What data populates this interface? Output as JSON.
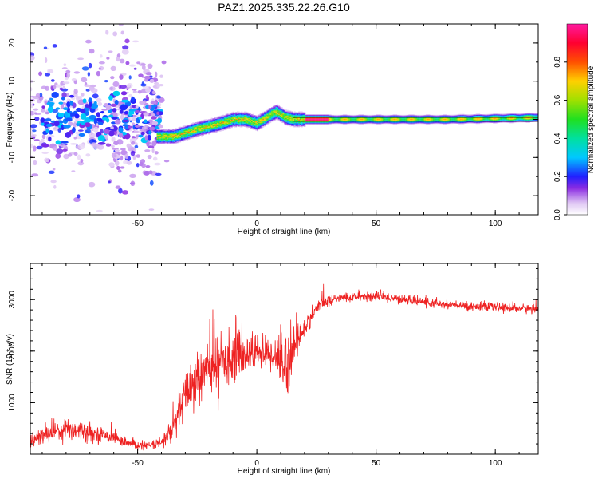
{
  "chart_data": [
    {
      "type": "heatmap",
      "title": "PAZ1.2025.335.22.26.G10",
      "xlabel": "Height of straight line (km)",
      "ylabel": "Frequency (Hz)",
      "xlim": [
        -95,
        118
      ],
      "ylim": [
        -25,
        25
      ],
      "xticks": [
        -50,
        0,
        50,
        100
      ],
      "yticks": [
        -20,
        -10,
        0,
        10,
        20
      ],
      "colorbar": {
        "label": "Normalized spectral amplitude",
        "range": [
          0,
          1
        ],
        "ticks": [
          "0.0",
          "0.2",
          "0.4",
          "0.6",
          "0.8"
        ]
      },
      "ridge_frequency": {
        "x": [
          -40,
          -35,
          -30,
          -25,
          -20,
          -15,
          -10,
          -5,
          0,
          5,
          8,
          12,
          15,
          20,
          30,
          50,
          80,
          118
        ],
        "y": [
          -4.5,
          -4.5,
          -3.5,
          -2.5,
          -1.8,
          -1,
          0,
          0,
          -1,
          1,
          2,
          0.5,
          0,
          0,
          0,
          0,
          0,
          0.5
        ]
      },
      "noisy_region": {
        "x_range": [
          -95,
          -40
        ],
        "y_range": [
          -25,
          25
        ]
      }
    },
    {
      "type": "line",
      "xlabel": "Height of straight line (km)",
      "ylabel": "SNR (10 * v/v)",
      "xlim": [
        -95,
        118
      ],
      "ylim": [
        0,
        3700
      ],
      "xticks": [
        -50,
        0,
        50,
        100
      ],
      "yticks": [
        1000,
        2000,
        3000
      ],
      "series": [
        {
          "name": "SNR",
          "color": "#ee2222",
          "x": [
            -95,
            -90,
            -85,
            -80,
            -75,
            -70,
            -65,
            -60,
            -55,
            -50,
            -45,
            -40,
            -35,
            -30,
            -25,
            -20,
            -15,
            -10,
            -5,
            0,
            5,
            10,
            12,
            15,
            20,
            25,
            30,
            35,
            40,
            45,
            50,
            55,
            60,
            65,
            70,
            75,
            80,
            85,
            90,
            95,
            100,
            105,
            110,
            118
          ],
          "mean": [
            250,
            350,
            450,
            500,
            480,
            420,
            380,
            330,
            220,
            170,
            170,
            220,
            500,
            1150,
            1450,
            1650,
            1800,
            1900,
            1950,
            2000,
            1950,
            1900,
            1700,
            2050,
            2450,
            2850,
            2980,
            3030,
            3050,
            3060,
            3060,
            3040,
            3010,
            2980,
            2950,
            2920,
            2900,
            2880,
            2870,
            2860,
            2850,
            2840,
            2830,
            2810
          ],
          "noise": [
            120,
            150,
            170,
            200,
            170,
            140,
            110,
            90,
            70,
            60,
            60,
            90,
            250,
            380,
            420,
            450,
            450,
            400,
            350,
            280,
            280,
            400,
            700,
            380,
            160,
            110,
            90,
            80,
            80,
            80,
            80,
            80,
            70,
            70,
            70,
            70,
            70,
            70,
            70,
            70,
            70,
            70,
            70,
            70
          ]
        }
      ]
    }
  ]
}
